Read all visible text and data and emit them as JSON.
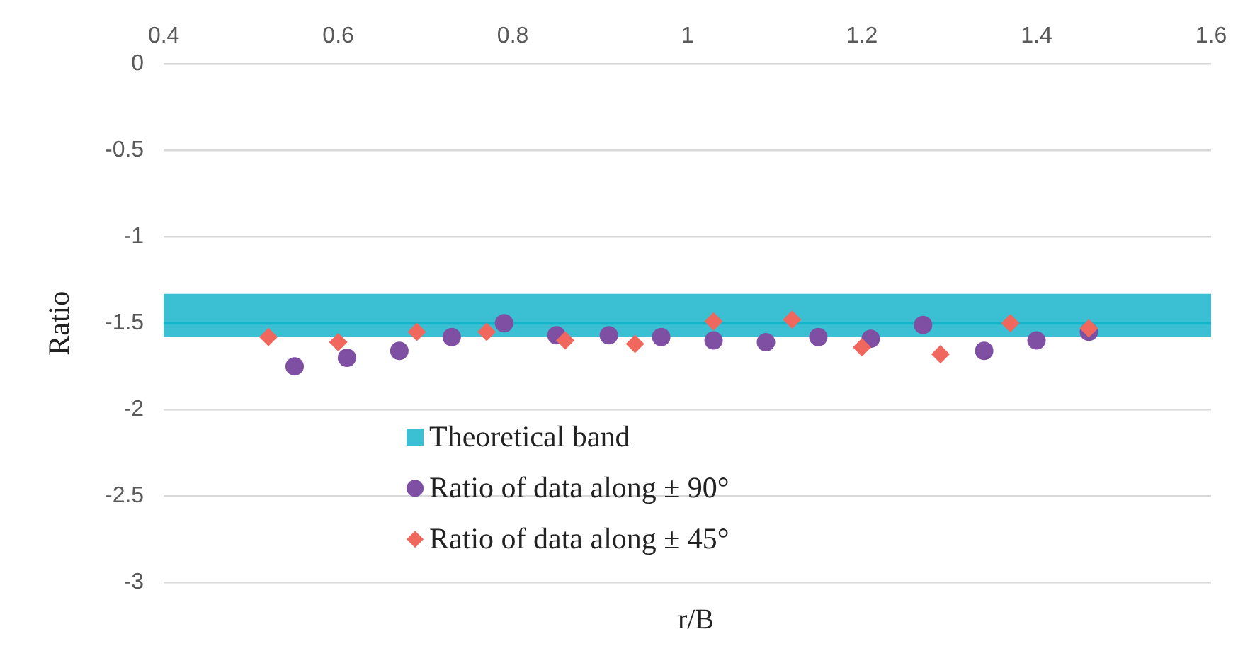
{
  "chart_data": {
    "type": "scatter",
    "xlabel": "r/B",
    "ylabel": "Ratio",
    "xlim": [
      0.4,
      1.6
    ],
    "xticks": [
      0.4,
      0.6,
      0.8,
      1,
      1.2,
      1.4,
      1.6
    ],
    "ylim": [
      -3,
      0
    ],
    "yticks": [
      0,
      -0.5,
      -1,
      -1.5,
      -2,
      -2.5,
      -3
    ],
    "grid": "y",
    "legend": "bottom",
    "bands": [
      {
        "axis": "y",
        "from": -1.58,
        "to": -1.33,
        "label": "Theoretical band",
        "color": "#3bc0d3"
      }
    ],
    "ref_lines": [
      {
        "axis": "y",
        "value": -1.5,
        "color": "#14b4ca"
      }
    ],
    "series": [
      {
        "name": "Ratio of data along ± 90°",
        "color": "#7f4fa3",
        "marker": "circle",
        "x": [
          0.55,
          0.61,
          0.67,
          0.73,
          0.79,
          0.85,
          0.91,
          0.97,
          1.03,
          1.09,
          1.15,
          1.21,
          1.27,
          1.34,
          1.4,
          1.46
        ],
        "values": [
          -1.75,
          -1.7,
          -1.66,
          -1.58,
          -1.5,
          -1.57,
          -1.57,
          -1.58,
          -1.6,
          -1.61,
          -1.58,
          -1.59,
          -1.51,
          -1.66,
          -1.6,
          -1.55
        ]
      },
      {
        "name": "Ratio of data along ± 45°",
        "color": "#f0675d",
        "marker": "diamond",
        "x": [
          0.52,
          0.6,
          0.69,
          0.77,
          0.86,
          0.94,
          1.03,
          1.12,
          1.2,
          1.29,
          1.37,
          1.46
        ],
        "values": [
          -1.58,
          -1.61,
          -1.55,
          -1.55,
          -1.6,
          -1.62,
          -1.49,
          -1.48,
          -1.64,
          -1.68,
          -1.5,
          -1.53
        ]
      }
    ]
  }
}
